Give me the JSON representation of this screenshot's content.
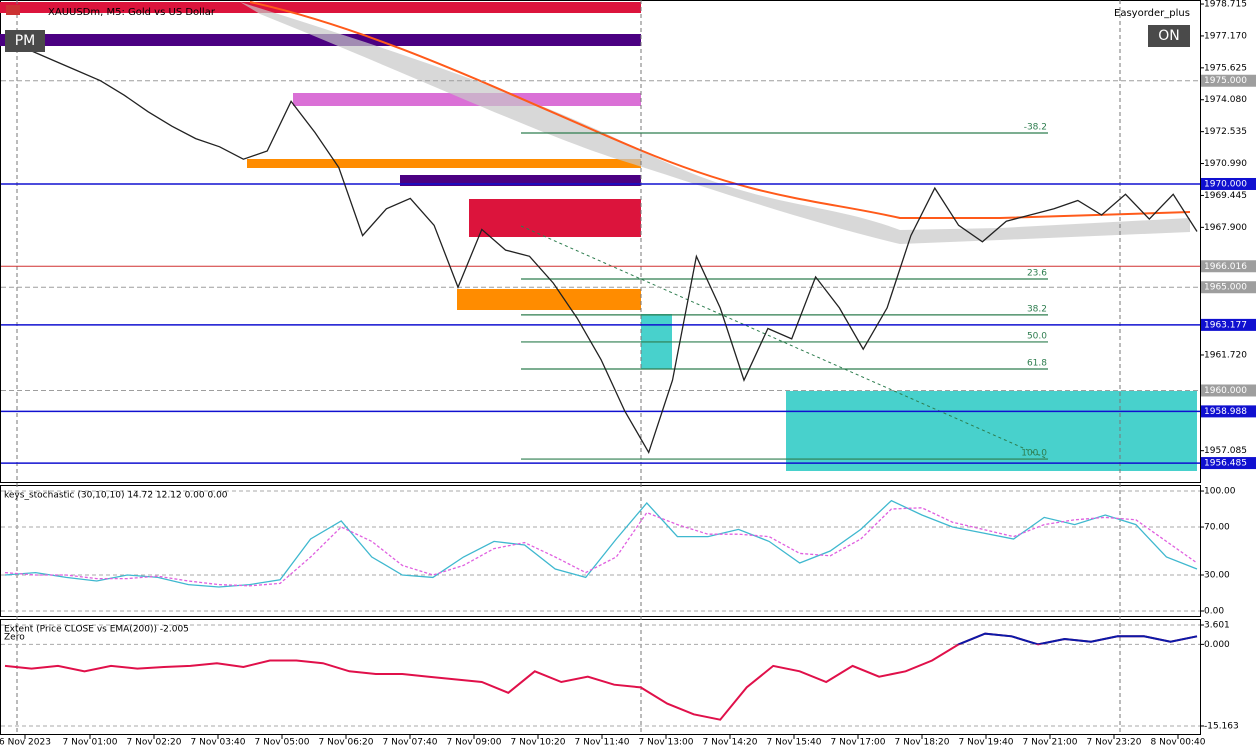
{
  "header": {
    "symbol": "XAUUSDm, M5:  Gold vs US Dollar",
    "expert": "Easyorder_plus",
    "pm_button": "PM",
    "on_button": "ON"
  },
  "time_labels": [
    "6 Nov 2023",
    "7 Nov 01:00",
    "7 Nov 02:20",
    "7 Nov 03:40",
    "7 Nov 05:00",
    "7 Nov 06:20",
    "7 Nov 07:40",
    "7 Nov 09:00",
    "7 Nov 10:20",
    "7 Nov 11:40",
    "7 Nov 13:00",
    "7 Nov 14:20",
    "7 Nov 15:40",
    "7 Nov 17:00",
    "7 Nov 18:20",
    "7 Nov 19:40",
    "7 Nov 21:00",
    "7 Nov 23:20",
    "8 Nov 00:40"
  ],
  "chart_data": [
    {
      "type": "line",
      "title": "XAUUSDm, M5:  Gold vs US Dollar",
      "series": [
        {
          "name": "Close",
          "color": "#222222",
          "values": [
            1976.8,
            1976.5,
            1976.0,
            1975.5,
            1975.0,
            1974.3,
            1973.5,
            1972.8,
            1972.2,
            1971.8,
            1971.2,
            1971.6,
            1974.0,
            1972.5,
            1970.8,
            1967.5,
            1968.8,
            1969.3,
            1968.0,
            1965.0,
            1967.8,
            1966.8,
            1966.5,
            1965.2,
            1963.5,
            1961.5,
            1959.0,
            1957.0,
            1960.5,
            1966.5,
            1964.0,
            1960.5,
            1963.0,
            1962.5,
            1965.5,
            1964.0,
            1962.0,
            1964.0,
            1967.5,
            1969.8,
            1968.0,
            1967.2,
            1968.2,
            1968.5,
            1968.8,
            1969.2,
            1968.5,
            1969.5,
            1968.3,
            1969.5,
            1967.7
          ]
        }
      ],
      "ylim": [
        1955.52,
        1978.91
      ],
      "yticks": [
        1978.715,
        {
          "value": 1977.17,
          "label": "1977.170"
        },
        1975.625,
        {
          "value": 1974.08,
          "label": "1974.080"
        },
        1972.535,
        {
          "value": 1970.99,
          "label": "1970.990"
        },
        1969.445,
        {
          "value": 1967.9,
          "label": "1967.900"
        },
        {
          "value": 1961.72,
          "label": "1961.720"
        },
        1957.085
      ],
      "levels": [
        {
          "value": 1975,
          "label": "1975.000",
          "color": "#9e9e9e",
          "style": "dash"
        },
        {
          "value": 1970,
          "label": "1970.000",
          "color": "#1010d0",
          "style": "solid"
        },
        {
          "value": 1966.016,
          "label": "1966.016",
          "color": "#9e9e9e",
          "style": "red"
        },
        {
          "value": 1965,
          "label": "1965.000",
          "color": "#9e9e9e",
          "style": "dash"
        },
        {
          "value": 1963.177,
          "label": "1963.177",
          "color": "#1010d0",
          "style": "solid"
        },
        {
          "value": 1960,
          "label": "1960.000",
          "color": "#9e9e9e",
          "style": "dash"
        },
        {
          "value": 1958.988,
          "label": "1958.988",
          "color": "#1010d0",
          "style": "solid"
        },
        {
          "value": 1956.485,
          "label": "1956.485",
          "color": "#1010d0",
          "style": "solid"
        }
      ],
      "fib_levels": [
        {
          "price": 1972.47,
          "label": "-38.2"
        },
        {
          "price": 1965.4,
          "label": "23.6"
        },
        {
          "price": 1963.66,
          "label": "38.2"
        },
        {
          "price": 1962.35,
          "label": "50.0"
        },
        {
          "price": 1961.04,
          "label": "61.8"
        },
        {
          "price": 1956.68,
          "label": "100.0"
        }
      ],
      "fib_color": "#2e7d4f"
    },
    {
      "type": "line",
      "title": "keys_stochastic (30,10,10) 14.72 12.12 0.00 0.00",
      "series": [
        {
          "name": "Main",
          "color": "#3fb8cf",
          "style": "solid",
          "values": [
            30,
            32,
            28,
            25,
            30,
            28,
            22,
            20,
            22,
            26,
            60,
            75,
            45,
            30,
            28,
            45,
            58,
            55,
            35,
            28,
            60,
            90,
            62,
            62,
            68,
            58,
            40,
            50,
            68,
            92,
            80,
            70,
            65,
            60,
            78,
            72,
            80,
            72,
            45,
            35
          ]
        },
        {
          "name": "Signal",
          "color": "#e060e0",
          "style": "dash",
          "values": [
            32,
            30,
            30,
            27,
            27,
            29,
            25,
            22,
            21,
            23,
            45,
            70,
            58,
            38,
            30,
            38,
            52,
            57,
            45,
            32,
            45,
            82,
            72,
            64,
            64,
            62,
            48,
            46,
            60,
            85,
            86,
            74,
            68,
            62,
            72,
            76,
            78,
            76,
            58,
            40
          ]
        }
      ],
      "ylim": [
        -5,
        104.2
      ],
      "yticks": [
        {
          "value": 100,
          "label": "100.00"
        },
        {
          "value": 70,
          "label": "70.00"
        },
        {
          "value": 30,
          "label": "30.00"
        },
        {
          "value": 0,
          "label": "0.00"
        }
      ]
    },
    {
      "type": "line",
      "title": "Extent (Price CLOSE vs EMA(200)) -2.005",
      "zero_label": "Zero",
      "series": [
        {
          "name": "Extent",
          "color": "#e0104a",
          "color_positive": "#0a1aa8",
          "values": [
            -4,
            -4.5,
            -4,
            -5,
            -4,
            -4.5,
            -4.2,
            -4,
            -3.5,
            -4.2,
            -3,
            -3,
            -3.5,
            -5,
            -5.5,
            -5.5,
            -6,
            -6.5,
            -7,
            -9,
            -5,
            -7,
            -6,
            -7.5,
            -8,
            -11,
            -13,
            -14,
            -8,
            -4,
            -5,
            -7,
            -4,
            -6,
            -5,
            -3,
            0,
            2,
            1.5,
            0,
            1,
            0.5,
            1.5,
            1.5,
            0.5,
            1.5
          ]
        }
      ],
      "ylim": [
        -16.84,
        4.53
      ],
      "yticks": [
        3.601,
        {
          "value": 0,
          "label": "0.000"
        },
        -15.163
      ]
    }
  ]
}
